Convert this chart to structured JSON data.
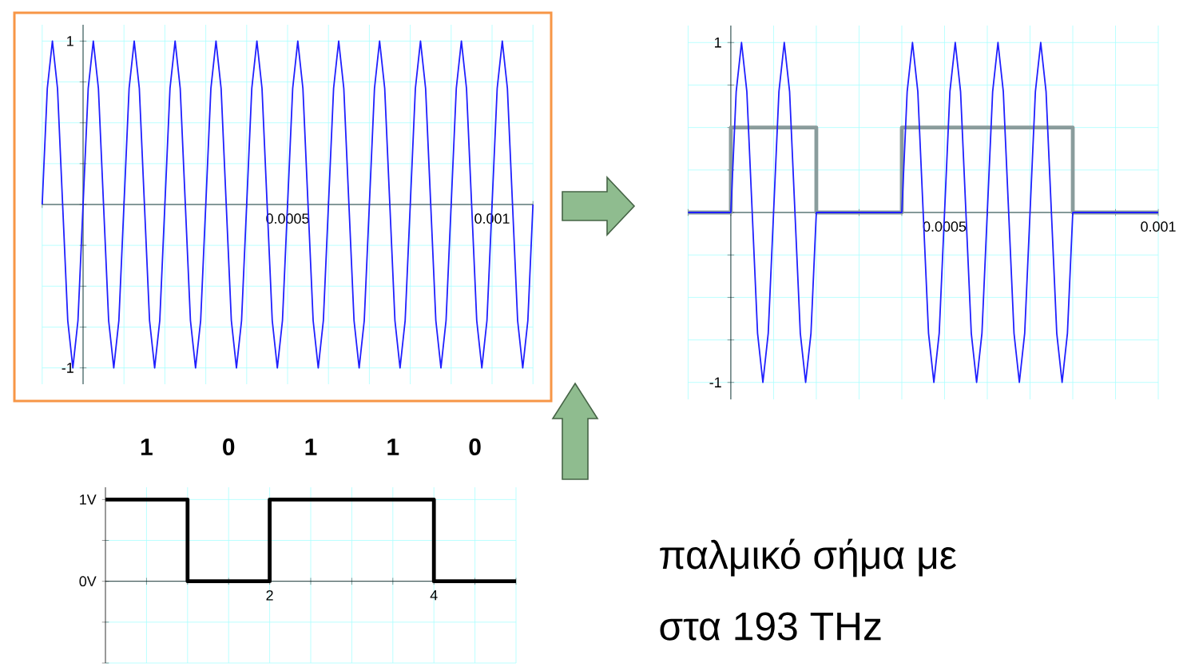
{
  "chart_data": [
    {
      "type": "line",
      "xlim": [
        -0.0001,
        0.0011
      ],
      "ylim": [
        -1.1,
        1.1
      ],
      "grid": true,
      "xticks": [
        {
          "value": -0.0001,
          "label": null
        },
        {
          "value": 0,
          "label": null
        },
        {
          "value": 0.0001,
          "label": null
        },
        {
          "value": 0.0002,
          "label": null
        },
        {
          "value": 0.0003,
          "label": null
        },
        {
          "value": 0.0004,
          "label": null
        },
        0.0005,
        {
          "value": 0.0006,
          "label": null
        },
        {
          "value": 0.0007,
          "label": null
        },
        {
          "value": 0.0008,
          "label": null
        },
        {
          "value": 0.0009,
          "label": null
        },
        0.001,
        {
          "value": 0.0011,
          "label": null
        }
      ],
      "yticks": [
        -1,
        {
          "value": -0.75,
          "label": null
        },
        {
          "value": -0.5,
          "label": null
        },
        {
          "value": -0.25,
          "label": null
        },
        {
          "value": 0,
          "label": null
        },
        {
          "value": 0.25,
          "label": null
        },
        {
          "value": 0.5,
          "label": null
        },
        {
          "value": 0.75,
          "label": null
        },
        1
      ],
      "series": [
        {
          "color": "#1f1fff",
          "x": [
            -0.0001,
            -8.75e-05,
            -7.5e-05,
            -6.25e-05,
            -5e-05,
            -3.75e-05,
            -2.5e-05,
            -1.25e-05,
            0,
            1.25e-05,
            2.5e-05,
            3.75e-05,
            5e-05,
            6.25e-05,
            7.5e-05,
            8.75e-05,
            0.0001,
            0.0001125,
            0.000125,
            0.0001375,
            0.00015,
            0.0001625,
            0.000175,
            0.0001875,
            0.0002,
            0.0002125,
            0.000225,
            0.0002375,
            0.00025,
            0.0002625,
            0.000275,
            0.0002875,
            0.0003,
            0.0003125,
            0.000325,
            0.0003375,
            0.00035,
            0.0003625,
            0.000375,
            0.0003875,
            0.0004,
            0.0004125,
            0.000425,
            0.0004375,
            0.00045,
            0.0004625,
            0.000475,
            0.0004875,
            0.0005,
            0.0005125,
            0.000525,
            0.0005375,
            0.00055,
            0.0005625,
            0.000575,
            0.0005875,
            0.0006,
            0.0006125,
            0.000625,
            0.0006375,
            0.00065,
            0.0006625,
            0.000675,
            0.0006875,
            0.0007,
            0.0007125,
            0.000725,
            0.0007375,
            0.00075,
            0.0007625,
            0.000775,
            0.0007875,
            0.0008,
            0.0008125,
            0.000825,
            0.0008375,
            0.00085,
            0.0008625,
            0.000875,
            0.0008875,
            0.0009,
            0.0009125,
            0.000925,
            0.0009375,
            0.00095,
            0.0009625,
            0.000975,
            0.0009875,
            0.001,
            0.0010125,
            0.001025,
            0.0010375,
            0.00105,
            0.0010625,
            0.001075,
            0.0010875,
            0.0011
          ],
          "values": [
            0,
            0.71,
            1,
            0.71,
            0,
            -0.71,
            -1,
            -0.71,
            0,
            0.71,
            1,
            0.71,
            0,
            -0.71,
            -1,
            -0.71,
            0,
            0.71,
            1,
            0.71,
            0,
            -0.71,
            -1,
            -0.71,
            0,
            0.71,
            1,
            0.71,
            0,
            -0.71,
            -1,
            -0.71,
            0,
            0.71,
            1,
            0.71,
            0,
            -0.71,
            -1,
            -0.71,
            0,
            0.71,
            1,
            0.71,
            0,
            -0.71,
            -1,
            -0.71,
            0,
            0.71,
            1,
            0.71,
            0,
            -0.71,
            -1,
            -0.71,
            0,
            0.71,
            1,
            0.71,
            0,
            -0.71,
            -1,
            -0.71,
            0,
            0.71,
            1,
            0.71,
            0,
            -0.71,
            -1,
            -0.71,
            0,
            0.71,
            1,
            0.71,
            0,
            -0.71,
            -1,
            -0.71,
            0,
            0.71,
            1,
            0.71,
            0,
            -0.71,
            -1,
            -0.71,
            0,
            0.71,
            1,
            0.71,
            0,
            -0.71,
            -1,
            -0.71,
            0
          ]
        }
      ]
    },
    {
      "type": "line",
      "xlim": [
        -0.0001,
        0.001
      ],
      "ylim": [
        -1.1,
        1.1
      ],
      "grid": true,
      "xticks": [
        {
          "value": -0.0001,
          "label": null
        },
        {
          "value": 0,
          "label": null
        },
        {
          "value": 0.0001,
          "label": null
        },
        {
          "value": 0.0002,
          "label": null
        },
        {
          "value": 0.0003,
          "label": null
        },
        {
          "value": 0.0004,
          "label": null
        },
        0.0005,
        {
          "value": 0.0006,
          "label": null
        },
        {
          "value": 0.0007,
          "label": null
        },
        {
          "value": 0.0008,
          "label": null
        },
        {
          "value": 0.0009,
          "label": null
        },
        0.001
      ],
      "yticks": [
        -1,
        {
          "value": -0.75,
          "label": null
        },
        {
          "value": -0.5,
          "label": null
        },
        {
          "value": -0.25,
          "label": null
        },
        {
          "value": 0,
          "label": null
        },
        {
          "value": 0.25,
          "label": null
        },
        {
          "value": 0.5,
          "label": null
        },
        {
          "value": 0.75,
          "label": null
        },
        1
      ],
      "series": [
        {
          "type": "step",
          "color": "#8a9c9c",
          "x": [
            -0.0001,
            0,
            0.0002,
            0.0004,
            0.0008,
            0.001
          ],
          "values": [
            0,
            0.5,
            0,
            0.5,
            0,
            0
          ]
        },
        {
          "color": "#1f1fff",
          "x": [
            -0.0001,
            0,
            1.25e-05,
            2.5e-05,
            3.75e-05,
            5e-05,
            6.25e-05,
            7.5e-05,
            8.75e-05,
            0.0001,
            0.0001125,
            0.000125,
            0.0001375,
            0.00015,
            0.0001625,
            0.000175,
            0.0001875,
            0.0002,
            0.0004,
            0.0004125,
            0.000425,
            0.0004375,
            0.00045,
            0.0004625,
            0.000475,
            0.0004875,
            0.0005,
            0.0005125,
            0.000525,
            0.0005375,
            0.00055,
            0.0005625,
            0.000575,
            0.0005875,
            0.0006,
            0.0006125,
            0.000625,
            0.0006375,
            0.00065,
            0.0006625,
            0.000675,
            0.0006875,
            0.0007,
            0.0007125,
            0.000725,
            0.0007375,
            0.00075,
            0.0007625,
            0.000775,
            0.0007875,
            0.0008,
            0.001
          ],
          "values": [
            0,
            0,
            0.71,
            1,
            0.71,
            0,
            -0.71,
            -1,
            -0.71,
            0,
            0.71,
            1,
            0.71,
            0,
            -0.71,
            -1,
            -0.71,
            0,
            0,
            0.71,
            1,
            0.71,
            0,
            -0.71,
            -1,
            -0.71,
            0,
            0.71,
            1,
            0.71,
            0,
            -0.71,
            -1,
            -0.71,
            0,
            0.71,
            1,
            0.71,
            0,
            -0.71,
            -1,
            -0.71,
            0,
            0.71,
            1,
            0.71,
            0,
            -0.71,
            -1,
            -0.71,
            0,
            0
          ]
        }
      ]
    },
    {
      "type": "step",
      "xlim": [
        0,
        5
      ],
      "ylim": [
        -1,
        1.15
      ],
      "grid": true,
      "xticks": [
        {
          "value": 0.5,
          "label": null
        },
        {
          "value": 1,
          "label": null
        },
        {
          "value": 1.5,
          "label": null
        },
        2,
        {
          "value": 2.5,
          "label": null
        },
        {
          "value": 3,
          "label": null
        },
        {
          "value": 3.5,
          "label": null
        },
        4,
        {
          "value": 4.5,
          "label": null
        },
        {
          "value": 5,
          "label": null
        }
      ],
      "yticks": [
        {
          "value": -1,
          "label": null
        },
        {
          "value": -0.5,
          "label": null
        },
        {
          "value": 0,
          "label": "0V"
        },
        {
          "value": 0.5,
          "label": null
        },
        {
          "value": 1,
          "label": "1V"
        }
      ],
      "annotations": [
        "1",
        "0",
        "1",
        "1",
        "0"
      ],
      "series": [
        {
          "color": "#000000",
          "x": [
            0,
            1,
            2,
            3,
            4,
            5
          ],
          "values": [
            1,
            0,
            1,
            1,
            0,
            0
          ]
        }
      ]
    },
    {
      "type": "other",
      "annotations": [
        "παλμικό σήμα με",
        "στα 193 THz"
      ]
    }
  ]
}
